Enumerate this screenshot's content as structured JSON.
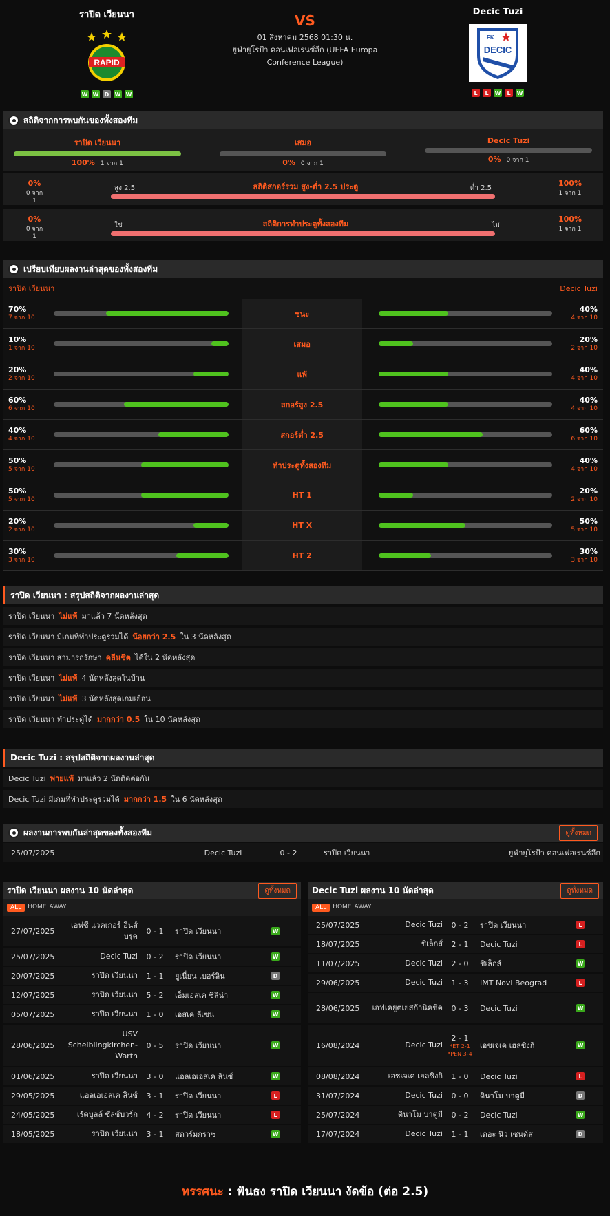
{
  "match": {
    "home": "ราปิด เวียนนา",
    "away": "Decic Tuzi",
    "vs": "VS",
    "datetime": "01 สิงหาคม 2568 01:30 น.",
    "competition": "ยูฟ่ายูโรป้า คอนเฟอเรนซ์ลีก (UEFA Europa Conference League)",
    "home_form": [
      "W",
      "W",
      "D",
      "W",
      "W"
    ],
    "away_form": [
      "L",
      "L",
      "W",
      "L",
      "W"
    ],
    "home_logo_text": "RAPID",
    "away_logo_text": "DECIC"
  },
  "h2h_stats": {
    "title": "สถิติจากการพบกันของทั้งสองทีม",
    "cols": [
      {
        "label": "ราปิด เวียนนา",
        "pct": "100%",
        "count": "1 จาก 1",
        "fill": 1.0,
        "color": "#7cc243"
      },
      {
        "label": "เสมอ",
        "pct": "0%",
        "count": "0 จาก 1",
        "fill": 0,
        "color": "#7cc243"
      },
      {
        "label": "Decic Tuzi",
        "pct": "0%",
        "count": "0 จาก 1",
        "fill": 0,
        "color": "#7cc243"
      }
    ],
    "ou": {
      "left_pct": "0%",
      "left_count": "0 จาก 1",
      "over": "สูง 2.5",
      "title": "สถิติสกอร์รวม สูง-ต่ำ 2.5 ประตู",
      "under": "ต่ำ 2.5",
      "right_pct": "100%",
      "right_count": "1 จาก 1"
    },
    "btts": {
      "left_pct": "0%",
      "left_count": "0 จาก 1",
      "yes": "ใช่",
      "title": "สถิติการทำประตูทั้งสองทีม",
      "no": "ไม่",
      "right_pct": "100%",
      "right_count": "1 จาก 1"
    }
  },
  "compare": {
    "title": "เปรียบเทียบผลงานล่าสุดของทั้งสองทีม",
    "home": "ราปิด เวียนนา",
    "away": "Decic Tuzi",
    "rows": [
      {
        "label": "ชนะ",
        "hp": "70%",
        "hc": "7 จาก 10",
        "hv": 0.7,
        "ap": "40%",
        "ac": "4 จาก 10",
        "av": 0.4
      },
      {
        "label": "เสมอ",
        "hp": "10%",
        "hc": "1 จาก 10",
        "hv": 0.1,
        "ap": "20%",
        "ac": "2 จาก 10",
        "av": 0.2
      },
      {
        "label": "แพ้",
        "hp": "20%",
        "hc": "2 จาก 10",
        "hv": 0.2,
        "ap": "40%",
        "ac": "4 จาก 10",
        "av": 0.4
      },
      {
        "label": "สกอร์สูง 2.5",
        "hp": "60%",
        "hc": "6 จาก 10",
        "hv": 0.6,
        "ap": "40%",
        "ac": "4 จาก 10",
        "av": 0.4
      },
      {
        "label": "สกอร์ต่ำ 2.5",
        "hp": "40%",
        "hc": "4 จาก 10",
        "hv": 0.4,
        "ap": "60%",
        "ac": "6 จาก 10",
        "av": 0.6
      },
      {
        "label": "ทำประตูทั้งสองทีม",
        "hp": "50%",
        "hc": "5 จาก 10",
        "hv": 0.5,
        "ap": "40%",
        "ac": "4 จาก 10",
        "av": 0.4
      },
      {
        "label": "HT 1",
        "hp": "50%",
        "hc": "5 จาก 10",
        "hv": 0.5,
        "ap": "20%",
        "ac": "2 จาก 10",
        "av": 0.2
      },
      {
        "label": "HT X",
        "hp": "20%",
        "hc": "2 จาก 10",
        "hv": 0.2,
        "ap": "50%",
        "ac": "5 จาก 10",
        "av": 0.5
      },
      {
        "label": "HT 2",
        "hp": "30%",
        "hc": "3 จาก 10",
        "hv": 0.3,
        "ap": "30%",
        "ac": "3 จาก 10",
        "av": 0.3
      }
    ]
  },
  "home_summary": {
    "title": "ราปิด เวียนนา : สรุปสถิติจากผลงานล่าสุด",
    "lines": [
      [
        "ราปิด เวียนนา",
        "ไม่แพ้",
        "มาแล้ว 7 นัดหลังสุด"
      ],
      [
        "ราปิด เวียนนา มีเกมที่ทำประตูรวมได้",
        "น้อยกว่า 2.5",
        "ใน 3 นัดหลังสุด"
      ],
      [
        "ราปิด เวียนนา สามารถรักษา",
        "คลีนชีต",
        "ได้ใน 2 นัดหลังสุด"
      ],
      [
        "ราปิด เวียนนา",
        "ไม่แพ้",
        "4 นัดหลังสุดในบ้าน"
      ],
      [
        "ราปิด เวียนนา",
        "ไม่แพ้",
        "3 นัดหลังสุดเกมเยือน"
      ],
      [
        "ราปิด เวียนนา ทำประตูได้",
        "มากกว่า 0.5",
        "ใน 10 นัดหลังสุด"
      ]
    ]
  },
  "away_summary": {
    "title": "Decic Tuzi : สรุปสถิติจากผลงานล่าสุด",
    "lines": [
      [
        "Decic Tuzi",
        "พ่ายแพ้",
        "มาแล้ว 2 นัดติดต่อกัน"
      ],
      [
        "Decic Tuzi มีเกมที่ทำประตูรวมได้",
        "มากกว่า 1.5",
        "ใน 6 นัดหลังสุด"
      ]
    ]
  },
  "h2h_recent": {
    "title": "ผลงานการพบกันล่าสุดของทั้งสองทีม",
    "button": "ดูทั้งหมด",
    "row": {
      "date": "25/07/2025",
      "home": "Decic Tuzi",
      "score": "0 - 2",
      "away": "ราปิด เวียนนา",
      "comp": "ยูฟ่ายูโรป้า คอนเฟอเรนซ์ลีก"
    }
  },
  "home_last": {
    "title": "ราปิด เวียนนา ผลงาน 10 นัดล่าสุด",
    "button": "ดูทั้งหมด",
    "tabs": [
      "ALL",
      "HOME",
      "AWAY"
    ],
    "rows": [
      {
        "d": "27/07/2025",
        "h": "เอฟซี แวคเกอร์ อินส์บรุค",
        "s": "0 - 1",
        "a": "ราปิด เวียนนา",
        "r": "W",
        "tall": true
      },
      {
        "d": "25/07/2025",
        "h": "Decic Tuzi",
        "s": "0 - 2",
        "a": "ราปิด เวียนนา",
        "r": "W"
      },
      {
        "d": "20/07/2025",
        "h": "ราปิด เวียนนา",
        "s": "1 - 1",
        "a": "ยูเนี่ยน เบอร์ลิน",
        "r": "D"
      },
      {
        "d": "12/07/2025",
        "h": "ราปิด เวียนนา",
        "s": "5 - 2",
        "a": "เอ็มเอสเค ซิลิน่า",
        "r": "W"
      },
      {
        "d": "05/07/2025",
        "h": "ราปิด เวียนนา",
        "s": "1 - 0",
        "a": "เอสเค ลีเซน",
        "r": "W"
      },
      {
        "d": "28/06/2025",
        "h": "USV Scheiblingkirchen-Warth",
        "s": "0 - 5",
        "a": "ราปิด เวียนนา",
        "r": "W",
        "xtall": true
      },
      {
        "d": "01/06/2025",
        "h": "ราปิด เวียนนา",
        "s": "3 - 0",
        "a": "แอลเอเอสเค ลินซ์",
        "r": "W"
      },
      {
        "d": "29/05/2025",
        "h": "แอลเอเอสเค ลินซ์",
        "s": "3 - 1",
        "a": "ราปิด เวียนนา",
        "r": "L"
      },
      {
        "d": "24/05/2025",
        "h": "เร้ดบูลล์ ซัลซ์บวร์ก",
        "s": "4 - 2",
        "a": "ราปิด เวียนนา",
        "r": "L"
      },
      {
        "d": "18/05/2025",
        "h": "ราปิด เวียนนา",
        "s": "3 - 1",
        "a": "สตวร์มกราซ",
        "r": "W"
      }
    ]
  },
  "away_last": {
    "title": "Decic Tuzi ผลงาน 10 นัดล่าสุด",
    "button": "ดูทั้งหมด",
    "tabs": [
      "ALL",
      "HOME",
      "AWAY"
    ],
    "rows": [
      {
        "d": "25/07/2025",
        "h": "Decic Tuzi",
        "s": "0 - 2",
        "a": "ราปิด เวียนนา",
        "r": "L"
      },
      {
        "d": "18/07/2025",
        "h": "ชิเล็กส์",
        "s": "2 - 1",
        "a": "Decic Tuzi",
        "r": "L"
      },
      {
        "d": "11/07/2025",
        "h": "Decic Tuzi",
        "s": "2 - 0",
        "a": "ชิเล็กส์",
        "r": "W"
      },
      {
        "d": "29/06/2025",
        "h": "Decic Tuzi",
        "s": "1 - 3",
        "a": "IMT Novi Beograd",
        "r": "L"
      },
      {
        "d": "28/06/2025",
        "h": "เอฟเคยูตเยสก้านิคชิค",
        "s": "0 - 3",
        "a": "Decic Tuzi",
        "r": "W",
        "tall": true
      },
      {
        "d": "16/08/2024",
        "h": "Decic Tuzi",
        "s": "2 - 1",
        "note": "*ET 2-1 *PEN 3-4",
        "a": "เอชเจเค เฮลซิงกิ",
        "r": "W",
        "xtall": true
      },
      {
        "d": "08/08/2024",
        "h": "เอชเจเค เฮลซิงกิ",
        "s": "1 - 0",
        "a": "Decic Tuzi",
        "r": "L"
      },
      {
        "d": "31/07/2024",
        "h": "Decic Tuzi",
        "s": "0 - 0",
        "a": "ดินาโม บาตูมี",
        "r": "D"
      },
      {
        "d": "25/07/2024",
        "h": "ดินาโม บาตูมี",
        "s": "0 - 2",
        "a": "Decic Tuzi",
        "r": "W"
      },
      {
        "d": "17/07/2024",
        "h": "Decic Tuzi",
        "s": "1 - 1",
        "a": "เดอะ นิว เซนต์ส",
        "r": "D"
      }
    ]
  },
  "prediction": {
    "label": "ทรรศนะ",
    "colon": ":",
    "text": "ฟันธง ราปิด เวียนนา งัดข้อ (ต่อ 2.5)"
  },
  "colors": {
    "accent": "#ff5a1f",
    "win": "#3aa91b",
    "loss": "#d62020",
    "draw": "#777777",
    "green_bar": "#4fc21e",
    "red_bar": "#f07070"
  }
}
